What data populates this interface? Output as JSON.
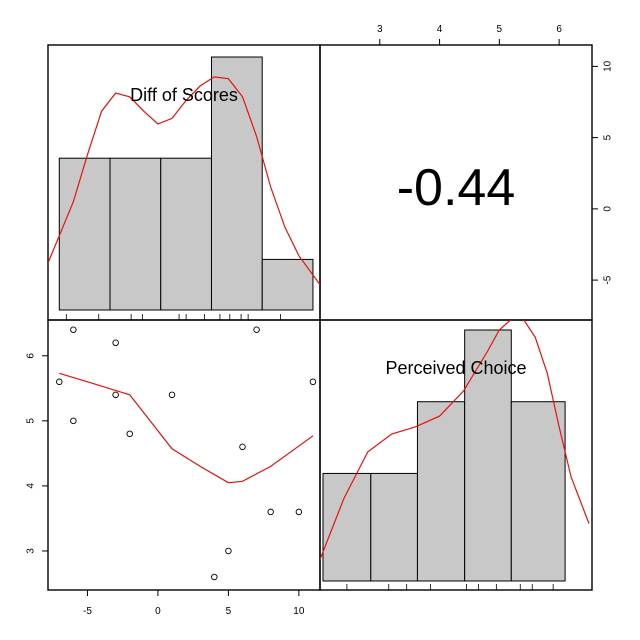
{
  "chart_data": {
    "type": "pairs",
    "variables": [
      "Diff of Scores",
      "Perceived Choice"
    ],
    "correlation_label": "-0.44",
    "bottom_axis": {
      "ticks": [
        -5,
        0,
        5,
        10
      ],
      "labels": [
        "-5",
        "0",
        "5",
        "10"
      ],
      "range": [
        -7.8,
        11.5
      ]
    },
    "top_axis": {
      "ticks": [
        3,
        4,
        5,
        6
      ],
      "labels": [
        "3",
        "4",
        "5",
        "6"
      ],
      "range": [
        2,
        6.55
      ]
    },
    "left_axis": {
      "ticks": [
        3,
        4,
        5,
        6
      ],
      "labels": [
        "3",
        "4",
        "5",
        "6"
      ],
      "range": [
        2.4,
        6.55
      ]
    },
    "right_axis": {
      "ticks": [
        -5,
        0,
        5,
        10
      ],
      "labels": [
        "-5",
        "0",
        "5",
        "10"
      ],
      "range": [
        -7.8,
        11.5
      ]
    },
    "histogram_diff": {
      "breaks": [
        -7,
        -3.4,
        0.2,
        3.8,
        7.4,
        11
      ],
      "heights": [
        3,
        3,
        3,
        5,
        1
      ],
      "rug": [
        -6.5,
        -4.2,
        -1.9,
        -1.1,
        1.5,
        2.0,
        3.3,
        4.4,
        5.1,
        5.9,
        6.4,
        8.7
      ],
      "density_x": [
        -7.8,
        -6,
        -5,
        -4,
        -3,
        -2,
        -1,
        0,
        1,
        2,
        3,
        4,
        5,
        6,
        7,
        8,
        9,
        10,
        11.5
      ],
      "density_y": [
        1.3,
        3.0,
        4.3,
        5.5,
        6.0,
        5.9,
        5.5,
        5.15,
        5.3,
        5.8,
        6.2,
        6.45,
        6.4,
        5.9,
        4.8,
        3.4,
        2.3,
        1.5,
        0.7
      ]
    },
    "histogram_choice": {
      "breaks": [
        2.05,
        2.85,
        3.63,
        4.42,
        5.2,
        6.1
      ],
      "heights": [
        3,
        3,
        5,
        7,
        5
      ],
      "rug": [
        2.45,
        3.15,
        3.45,
        3.85,
        4.45,
        4.65,
        4.95,
        5.35,
        5.55,
        5.9
      ],
      "density_x": [
        2.0,
        2.4,
        2.8,
        3.2,
        3.6,
        4.0,
        4.4,
        4.8,
        5.0,
        5.2,
        5.4,
        5.6,
        5.8,
        6.0,
        6.2,
        6.5
      ],
      "density_y": [
        0.6,
        2.3,
        3.6,
        4.1,
        4.3,
        4.6,
        5.3,
        6.4,
        7.0,
        7.3,
        7.3,
        6.8,
        5.8,
        4.3,
        2.9,
        1.6
      ]
    },
    "scatter": {
      "x": [
        -7,
        -6,
        -6,
        -3,
        -3,
        -2,
        1,
        4,
        5,
        6,
        7,
        8,
        10,
        11
      ],
      "y": [
        5.6,
        6.4,
        5.0,
        6.2,
        5.4,
        4.8,
        5.4,
        2.6,
        3.0,
        4.6,
        6.4,
        3.6,
        3.6,
        5.6
      ]
    },
    "smooth_line": {
      "x": [
        -7,
        -5,
        -2,
        1,
        3,
        5,
        6,
        8,
        11
      ],
      "y": [
        5.73,
        5.6,
        5.4,
        4.57,
        4.3,
        4.05,
        4.07,
        4.3,
        4.77
      ]
    },
    "colors": {
      "bar_fill": "#c8c8c8",
      "density_line": "#e8120c",
      "point": "#000000"
    }
  }
}
